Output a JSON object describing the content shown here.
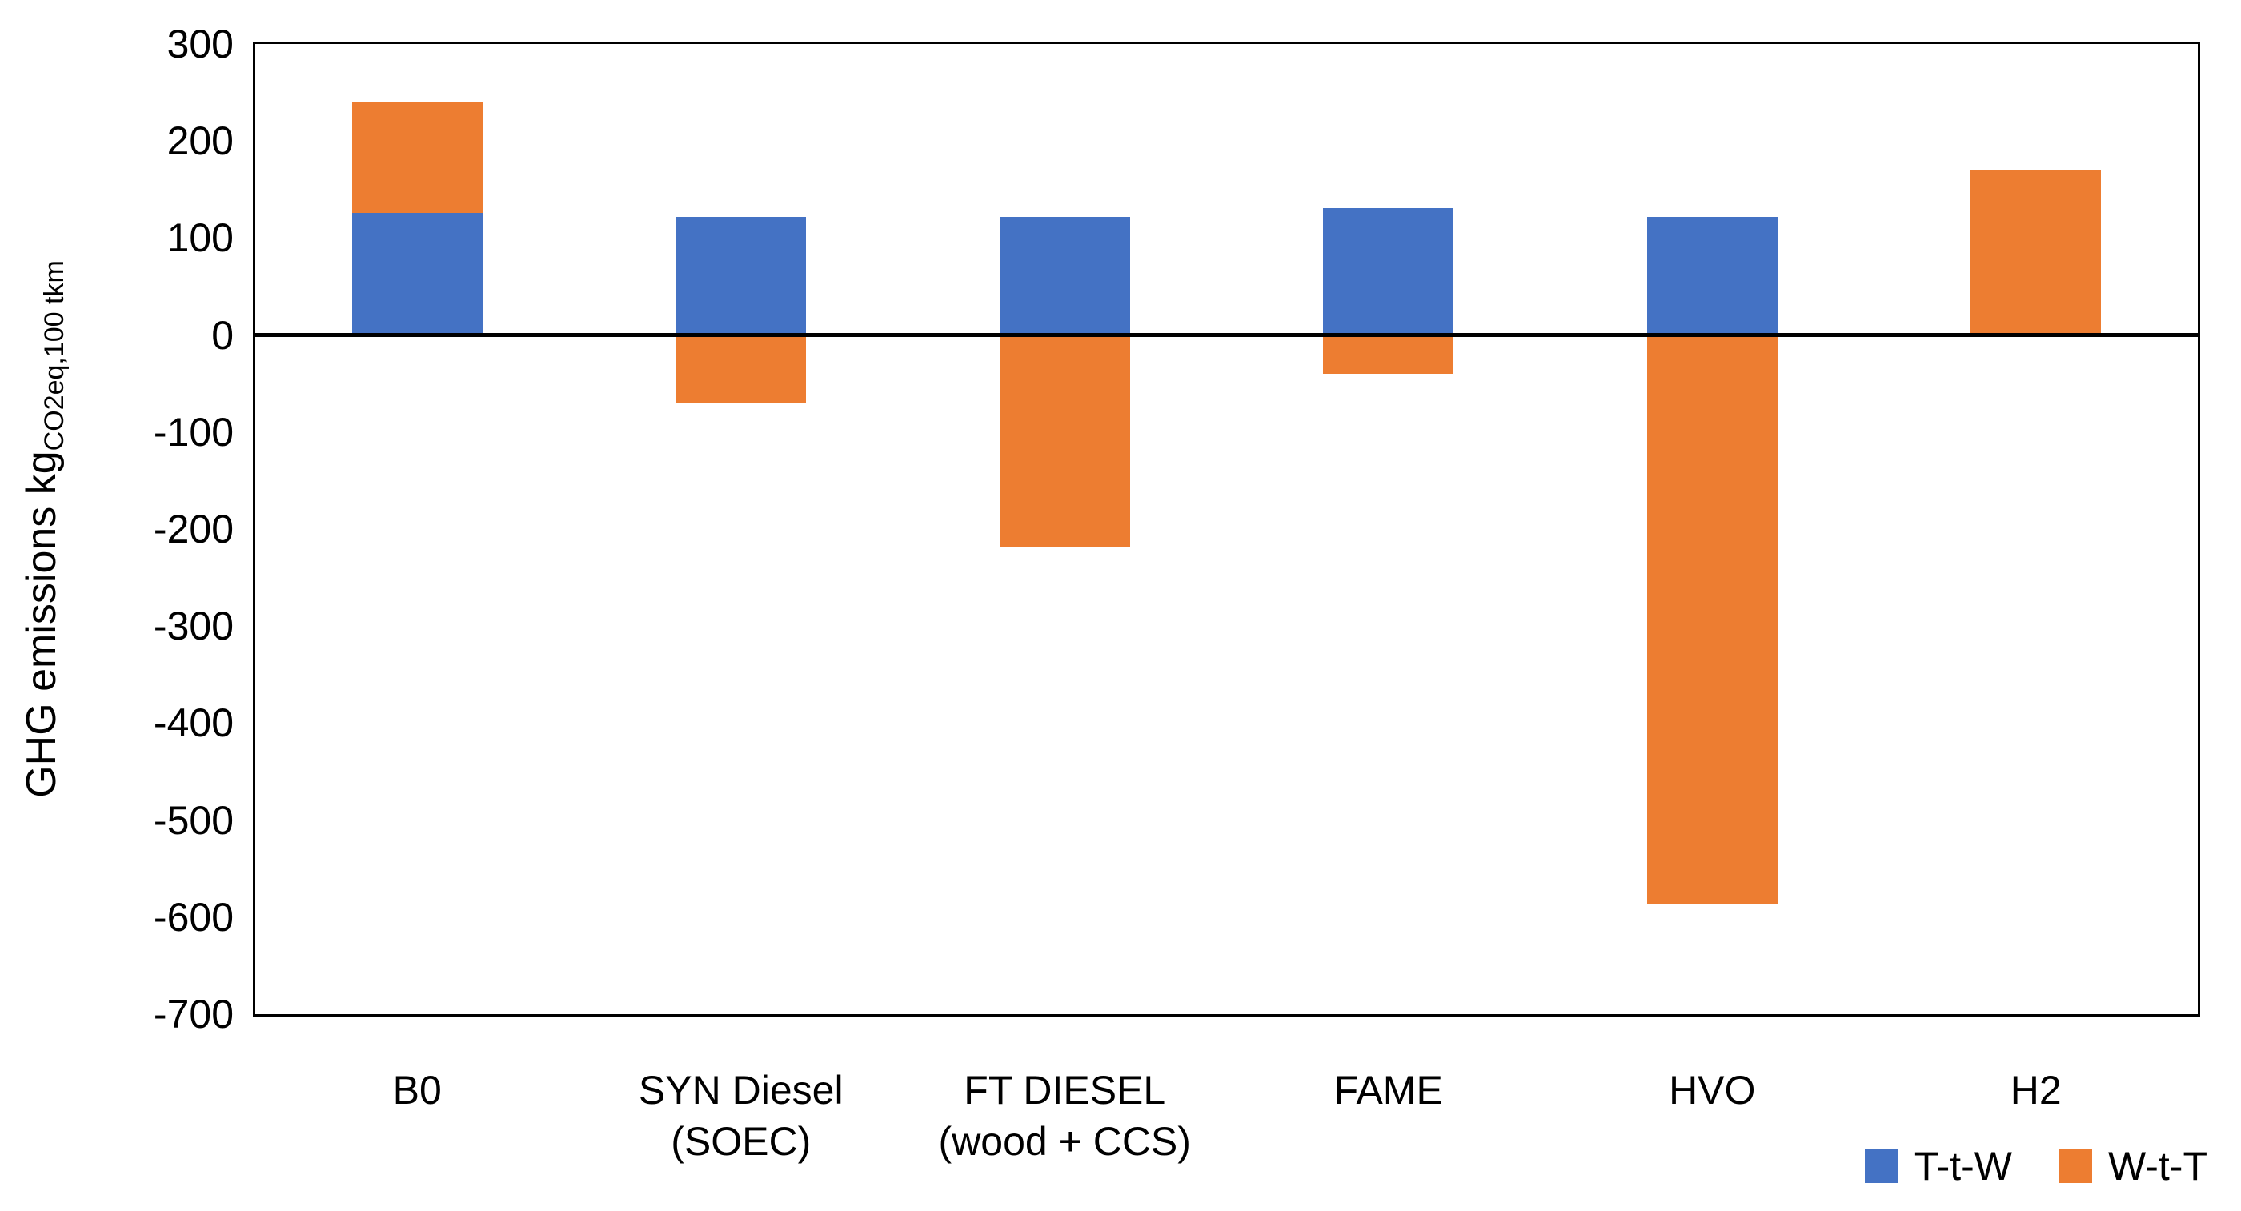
{
  "chart_data": {
    "type": "bar",
    "stacked": true,
    "title": "",
    "ylabel_main": "GHG emissions kg",
    "ylabel_sub": "CO2eq,100 tkm",
    "categories": [
      [
        "B0"
      ],
      [
        "SYN Diesel",
        "(SOEC)"
      ],
      [
        "FT DIESEL",
        "(wood + CCS)"
      ],
      [
        "FAME"
      ],
      [
        "HVO"
      ],
      [
        "H2"
      ]
    ],
    "series": [
      {
        "name": "T-t-W",
        "color": "#4472C4",
        "values": [
          126,
          122,
          122,
          131,
          122,
          0
        ]
      },
      {
        "name": "W-t-T",
        "color": "#ED7D31",
        "values": [
          115,
          -70,
          -219,
          -40,
          -586,
          170
        ]
      }
    ],
    "ylim": [
      -700,
      300
    ],
    "yticks": [
      300,
      200,
      100,
      0,
      -100,
      -200,
      -300,
      -400,
      -500,
      -600,
      -700
    ],
    "grid": false,
    "legend_position": "bottom-right",
    "axis_color": "#000000",
    "background": "#FFFFFF"
  }
}
